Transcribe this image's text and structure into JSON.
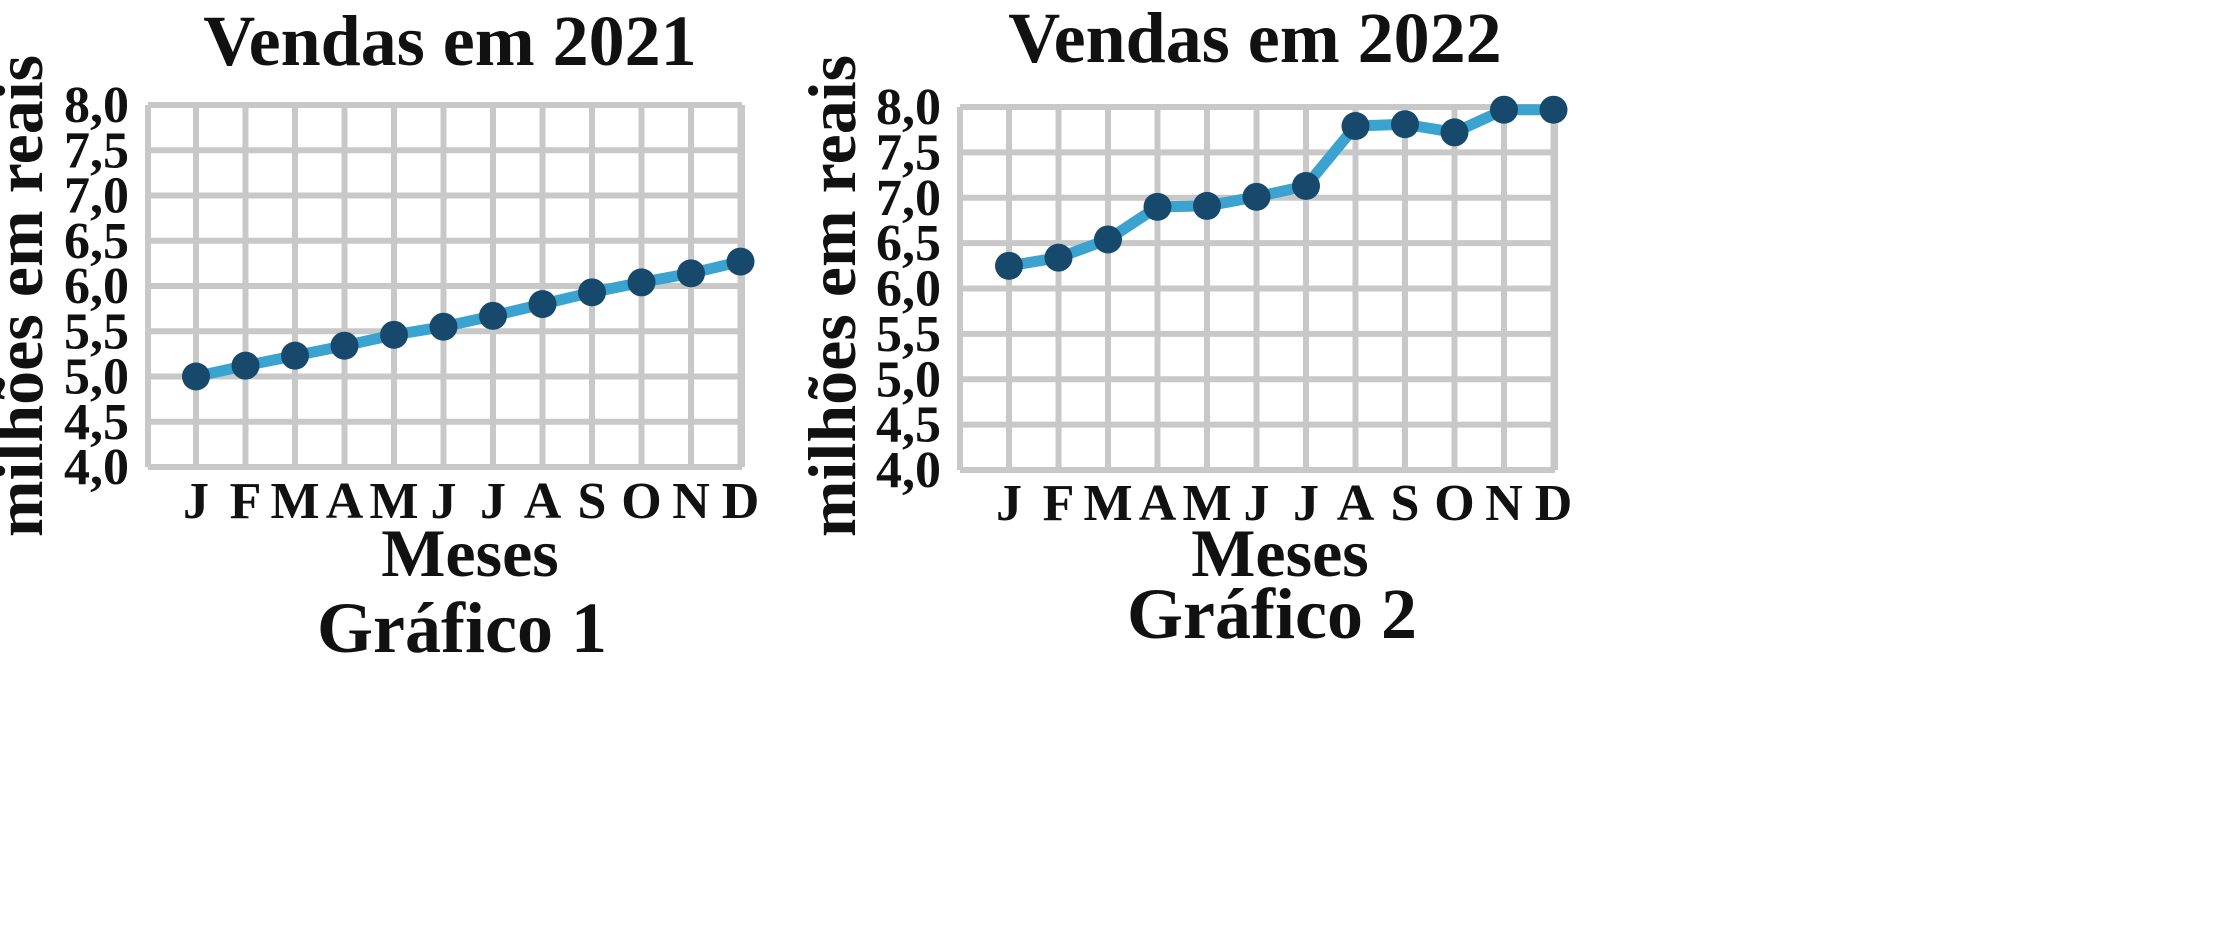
{
  "colors": {
    "line": "#3aa3cf",
    "marker": "#17496d",
    "grid": "#c8c8c8",
    "text": "#111111"
  },
  "chart_data": [
    {
      "type": "line",
      "title": "Vendas em 2021",
      "xlabel": "Meses",
      "ylabel": "milhões em reais",
      "caption": "Gráfico 1",
      "categories": [
        "J",
        "F",
        "M",
        "A",
        "M",
        "J",
        "J",
        "A",
        "S",
        "O",
        "N",
        "D"
      ],
      "values": [
        5.0,
        5.12,
        5.23,
        5.34,
        5.46,
        5.55,
        5.67,
        5.8,
        5.93,
        6.04,
        6.14,
        6.27
      ],
      "ylim": [
        4.0,
        8.0
      ],
      "yticks": [
        "4,0",
        "4,5",
        "5,0",
        "5,5",
        "6,0",
        "6,5",
        "7,0",
        "7,5",
        "8,0"
      ],
      "grid": true,
      "legend": "none"
    },
    {
      "type": "line",
      "title": "Vendas em 2022",
      "xlabel": "Meses",
      "ylabel": "milhões em reais",
      "caption": "Gráfico 2",
      "categories": [
        "J",
        "F",
        "M",
        "A",
        "M",
        "J",
        "J",
        "A",
        "S",
        "O",
        "N",
        "D"
      ],
      "values": [
        6.25,
        6.34,
        6.54,
        6.9,
        6.91,
        7.01,
        7.13,
        7.79,
        7.81,
        7.72,
        7.97,
        7.97
      ],
      "ylim": [
        4.0,
        8.0
      ],
      "yticks": [
        "4,0",
        "4,5",
        "5,0",
        "5,5",
        "6,0",
        "6,5",
        "7,0",
        "7,5",
        "8,0"
      ],
      "grid": true,
      "legend": "none"
    }
  ]
}
